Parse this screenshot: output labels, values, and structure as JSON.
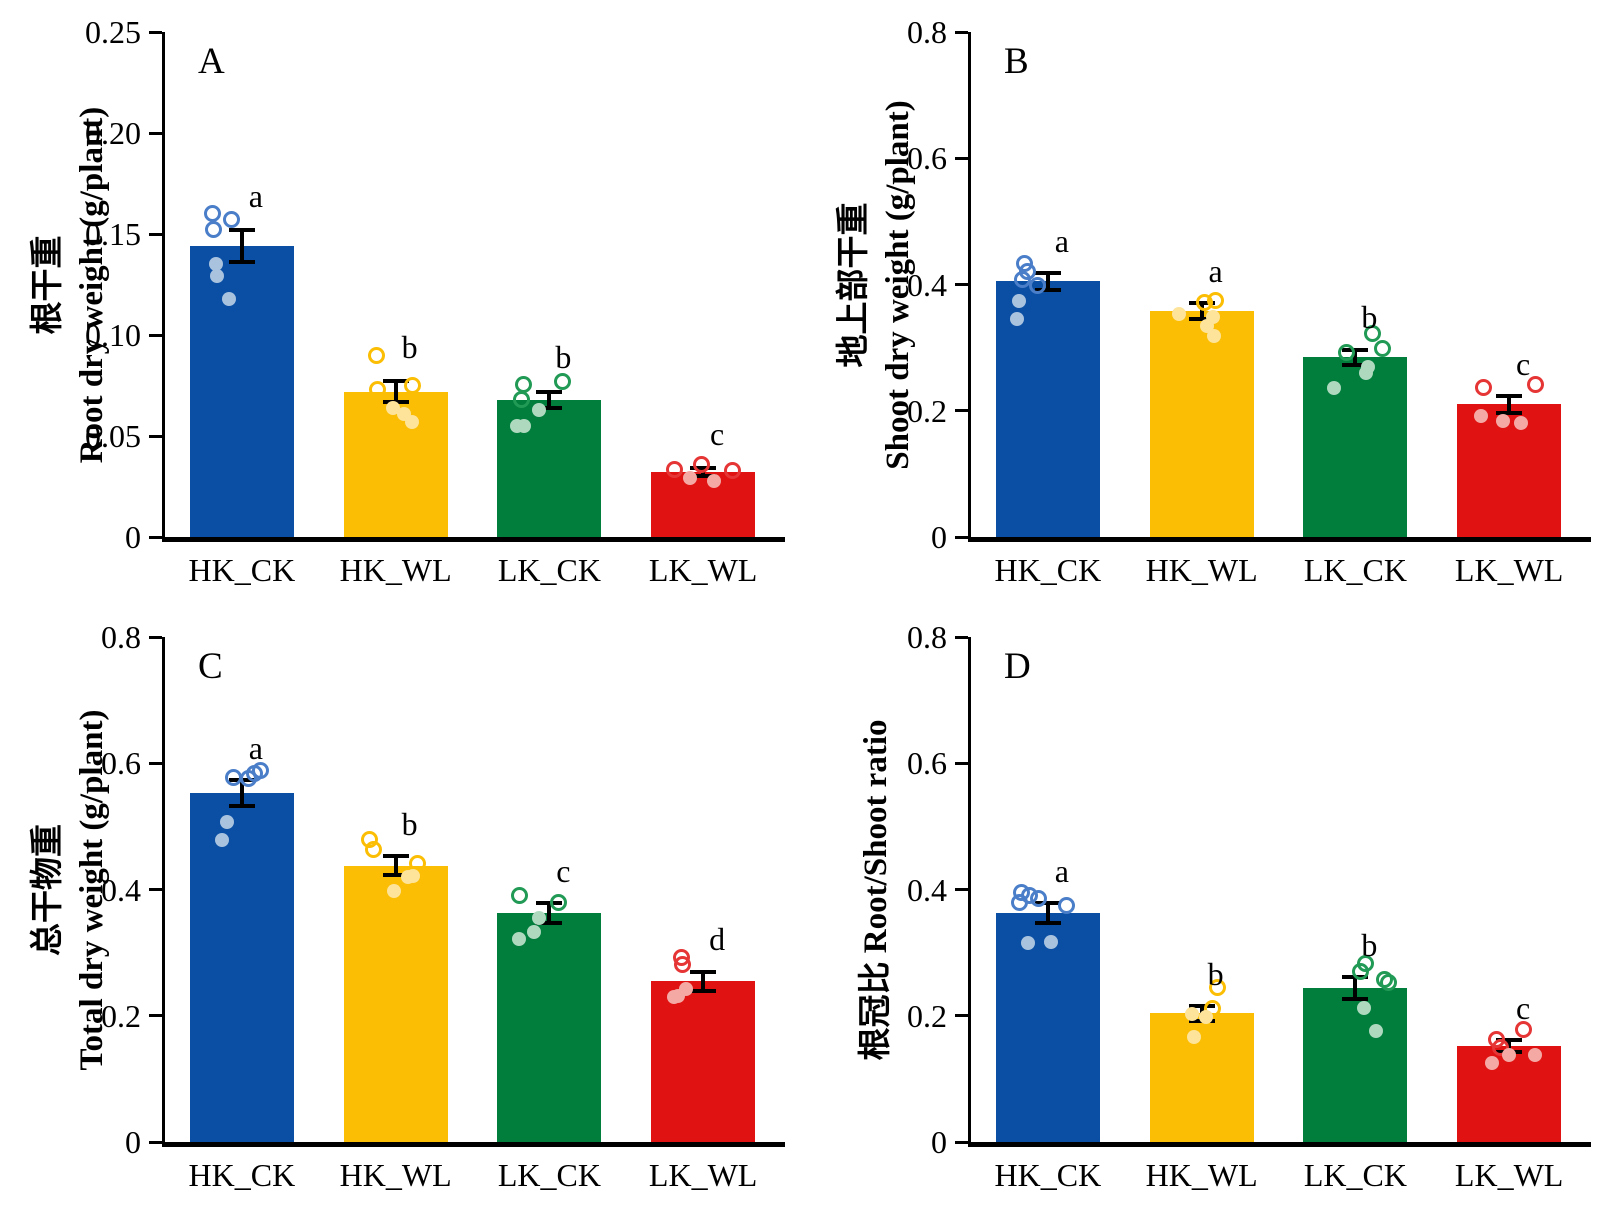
{
  "figure": {
    "background": "#ffffff",
    "axis_color": "#000000",
    "error_bar_color": "#000000"
  },
  "group_colors": [
    {
      "key": "HK_CK",
      "bar": "#0a4fa4",
      "open_stroke": "#4a7ec8",
      "filled_fill": "#a9c3df"
    },
    {
      "key": "HK_WL",
      "bar": "#fbbe04",
      "open_stroke": "#fbbe04",
      "filled_fill": "#fde49a"
    },
    {
      "key": "LK_CK",
      "bar": "#017d3c",
      "open_stroke": "#219a55",
      "filled_fill": "#aed9bf"
    },
    {
      "key": "LK_WL",
      "bar": "#e01212",
      "open_stroke": "#e63535",
      "filled_fill": "#f4a9a5"
    }
  ],
  "chart_data": [
    {
      "type": "bar",
      "panel_label": "A",
      "ylabel_lines": [
        "根干重",
        "Root dry weight (g/plant)"
      ],
      "xlabel": "",
      "categories": [
        "HK_CK",
        "HK_WL",
        "LK_CK",
        "LK_WL"
      ],
      "ylim": [
        0,
        0.25
      ],
      "yticks": [
        0,
        0.05,
        0.1,
        0.15,
        0.2,
        0.25
      ],
      "ytick_labels": [
        "0",
        "0.05",
        "0.10",
        "0.15",
        "0.20",
        "0.25"
      ],
      "grid": false,
      "legend": "none",
      "bars": [
        {
          "category": "HK_CK",
          "value": 0.144,
          "error": 0.008,
          "letter": "a",
          "points_open": [
            [
              -0.28,
              0.16
            ],
            [
              -0.1,
              0.157
            ],
            [
              -0.27,
              0.152
            ]
          ],
          "points_filled": [
            [
              -0.25,
              0.135
            ],
            [
              -0.24,
              0.129
            ],
            [
              -0.12,
              0.118
            ]
          ]
        },
        {
          "category": "HK_WL",
          "value": 0.072,
          "error": 0.005,
          "letter": "b",
          "points_open": [
            [
              -0.18,
              0.09
            ],
            [
              -0.17,
              0.073
            ],
            [
              0.16,
              0.075
            ]
          ],
          "points_filled": [
            [
              -0.03,
              0.064
            ],
            [
              0.08,
              0.061
            ],
            [
              0.16,
              0.057
            ]
          ]
        },
        {
          "category": "LK_CK",
          "value": 0.068,
          "error": 0.004,
          "letter": "b",
          "points_open": [
            [
              -0.25,
              0.0755
            ],
            [
              0.13,
              0.077
            ],
            [
              -0.27,
              0.068
            ]
          ],
          "points_filled": [
            [
              -0.31,
              0.055
            ],
            [
              -0.24,
              0.055
            ],
            [
              -0.1,
              0.063
            ]
          ]
        },
        {
          "category": "LK_WL",
          "value": 0.032,
          "error": 0.002,
          "letter": "c",
          "points_open": [
            [
              -0.28,
              0.0335
            ],
            [
              -0.02,
              0.036
            ],
            [
              0.28,
              0.033
            ]
          ],
          "points_filled": [
            [
              -0.13,
              0.029
            ],
            [
              0.1,
              0.0275
            ]
          ]
        }
      ]
    },
    {
      "type": "bar",
      "panel_label": "B",
      "ylabel_lines": [
        "地上部干重",
        "Shoot dry weight (g/plant)"
      ],
      "xlabel": "",
      "categories": [
        "HK_CK",
        "HK_WL",
        "LK_CK",
        "LK_WL"
      ],
      "ylim": [
        0,
        0.8
      ],
      "yticks": [
        0,
        0.2,
        0.4,
        0.6,
        0.8
      ],
      "ytick_labels": [
        "0",
        "0.2",
        "0.4",
        "0.6",
        "0.8"
      ],
      "grid": false,
      "legend": "none",
      "bars": [
        {
          "category": "HK_CK",
          "value": 0.405,
          "error": 0.013,
          "letter": "a",
          "points_open": [
            [
              -0.22,
              0.433
            ],
            [
              -0.2,
              0.42
            ],
            [
              -0.24,
              0.408
            ],
            [
              -0.1,
              0.399
            ]
          ],
          "points_filled": [
            [
              -0.28,
              0.374
            ],
            [
              -0.3,
              0.345
            ]
          ]
        },
        {
          "category": "HK_WL",
          "value": 0.358,
          "error": 0.012,
          "letter": "a",
          "points_open": [
            [
              0.03,
              0.372
            ],
            [
              0.13,
              0.374
            ]
          ],
          "points_filled": [
            [
              -0.22,
              0.353
            ],
            [
              0.11,
              0.348
            ],
            [
              0.05,
              0.334
            ],
            [
              0.12,
              0.318
            ]
          ]
        },
        {
          "category": "LK_CK",
          "value": 0.285,
          "error": 0.012,
          "letter": "b",
          "points_open": [
            [
              0.16,
              0.322
            ],
            [
              0.26,
              0.298
            ],
            [
              -0.09,
              0.292
            ]
          ],
          "points_filled": [
            [
              0.12,
              0.269
            ],
            [
              0.1,
              0.26
            ],
            [
              -0.21,
              0.236
            ]
          ]
        },
        {
          "category": "LK_WL",
          "value": 0.21,
          "error": 0.013,
          "letter": "c",
          "points_open": [
            [
              -0.25,
              0.237
            ],
            [
              0.25,
              0.242
            ]
          ],
          "points_filled": [
            [
              -0.27,
              0.192
            ],
            [
              -0.06,
              0.184
            ],
            [
              0.11,
              0.181
            ]
          ]
        }
      ]
    },
    {
      "type": "bar",
      "panel_label": "C",
      "ylabel_lines": [
        "总干物重",
        "Total dry weight (g/plant)"
      ],
      "xlabel": "",
      "categories": [
        "HK_CK",
        "HK_WL",
        "LK_CK",
        "LK_WL"
      ],
      "ylim": [
        0,
        0.8
      ],
      "yticks": [
        0,
        0.2,
        0.4,
        0.6,
        0.8
      ],
      "ytick_labels": [
        "0",
        "0.2",
        "0.4",
        "0.6",
        "0.8"
      ],
      "grid": false,
      "legend": "none",
      "bars": [
        {
          "category": "HK_CK",
          "value": 0.553,
          "error": 0.021,
          "letter": "a",
          "points_open": [
            [
              -0.08,
              0.577
            ],
            [
              0.06,
              0.576
            ],
            [
              0.12,
              0.583
            ],
            [
              0.18,
              0.589
            ]
          ],
          "points_filled": [
            [
              -0.14,
              0.507
            ],
            [
              -0.19,
              0.478
            ]
          ]
        },
        {
          "category": "HK_WL",
          "value": 0.438,
          "error": 0.015,
          "letter": "b",
          "points_open": [
            [
              -0.25,
              0.48
            ],
            [
              -0.21,
              0.463
            ],
            [
              0.21,
              0.441
            ]
          ],
          "points_filled": [
            [
              0.12,
              0.42
            ],
            [
              0.17,
              0.422
            ],
            [
              -0.02,
              0.397
            ]
          ]
        },
        {
          "category": "LK_CK",
          "value": 0.363,
          "error": 0.016,
          "letter": "c",
          "points_open": [
            [
              -0.29,
              0.391
            ],
            [
              0.09,
              0.38
            ]
          ],
          "points_filled": [
            [
              -0.1,
              0.355
            ],
            [
              -0.15,
              0.333
            ],
            [
              -0.29,
              0.322
            ]
          ]
        },
        {
          "category": "LK_WL",
          "value": 0.255,
          "error": 0.015,
          "letter": "d",
          "points_open": [
            [
              -0.21,
              0.292
            ],
            [
              -0.2,
              0.281
            ]
          ],
          "points_filled": [
            [
              -0.16,
              0.243
            ],
            [
              -0.24,
              0.231
            ],
            [
              -0.28,
              0.229
            ]
          ]
        }
      ]
    },
    {
      "type": "bar",
      "panel_label": "D",
      "ylabel_lines": [
        "根冠比 Root/Shoot ratio"
      ],
      "xlabel": "",
      "categories": [
        "HK_CK",
        "HK_WL",
        "LK_CK",
        "LK_WL"
      ],
      "ylim": [
        0,
        0.8
      ],
      "yticks": [
        0,
        0.2,
        0.4,
        0.6,
        0.8
      ],
      "ytick_labels": [
        "0",
        "0.2",
        "0.4",
        "0.6",
        "0.8"
      ],
      "grid": false,
      "legend": "none",
      "bars": [
        {
          "category": "HK_CK",
          "value": 0.363,
          "error": 0.016,
          "letter": "a",
          "points_open": [
            [
              -0.25,
              0.395
            ],
            [
              -0.18,
              0.39
            ],
            [
              -0.09,
              0.386
            ],
            [
              -0.27,
              0.38
            ],
            [
              0.18,
              0.374
            ]
          ],
          "points_filled": [
            [
              -0.19,
              0.315
            ],
            [
              0.03,
              0.317
            ]
          ]
        },
        {
          "category": "HK_WL",
          "value": 0.204,
          "error": 0.012,
          "letter": "b",
          "points_open": [
            [
              0.15,
              0.244
            ],
            [
              0.1,
              0.212
            ]
          ],
          "points_filled": [
            [
              -0.09,
              0.203
            ],
            [
              0.04,
              0.198
            ],
            [
              -0.07,
              0.167
            ]
          ]
        },
        {
          "category": "LK_CK",
          "value": 0.244,
          "error": 0.018,
          "letter": "b",
          "points_open": [
            [
              0.1,
              0.283
            ],
            [
              0.05,
              0.27
            ],
            [
              0.28,
              0.257
            ],
            [
              0.32,
              0.253
            ]
          ],
          "points_filled": [
            [
              0.08,
              0.213
            ],
            [
              0.2,
              0.176
            ]
          ]
        },
        {
          "category": "LK_WL",
          "value": 0.152,
          "error": 0.01,
          "letter": "c",
          "points_open": [
            [
              0.14,
              0.178
            ],
            [
              -0.12,
              0.162
            ],
            [
              -0.08,
              0.15
            ]
          ],
          "points_filled": [
            [
              0.0,
              0.138
            ],
            [
              0.25,
              0.138
            ],
            [
              -0.16,
              0.125
            ]
          ]
        }
      ]
    }
  ]
}
